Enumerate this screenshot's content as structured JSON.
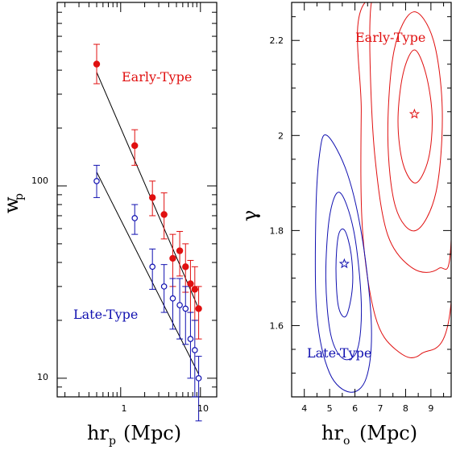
{
  "chart_data": [
    {
      "type": "scatter",
      "x_scale": "log",
      "y_scale": "log",
      "xlim": [
        0.16,
        16
      ],
      "ylim": [
        8,
        900
      ],
      "x_ticks": [
        1,
        10
      ],
      "y_ticks": [
        10,
        100
      ],
      "xlabel": "hr",
      "xlabel_subscript": "p",
      "xlabel_suffix": "(Mpc)",
      "ylabel": "w",
      "ylabel_subscript": "p",
      "grid": false,
      "series": [
        {
          "name": "Early-Type",
          "color": "#e01010",
          "marker": "filled-circle",
          "points": [
            {
              "x": 0.5,
              "y": 430,
              "lo": 340,
              "hi": 545
            },
            {
              "x": 1.5,
              "y": 162,
              "lo": 128,
              "hi": 196
            },
            {
              "x": 2.5,
              "y": 87,
              "lo": 70,
              "hi": 106
            },
            {
              "x": 3.5,
              "y": 71,
              "lo": 53,
              "hi": 92
            },
            {
              "x": 4.5,
              "y": 42,
              "lo": 30,
              "hi": 56
            },
            {
              "x": 5.5,
              "y": 46,
              "lo": 34,
              "hi": 58
            },
            {
              "x": 6.5,
              "y": 38,
              "lo": 28,
              "hi": 50
            },
            {
              "x": 7.5,
              "y": 31,
              "lo": 22,
              "hi": 41
            },
            {
              "x": 8.5,
              "y": 29,
              "lo": 20,
              "hi": 38
            },
            {
              "x": 9.5,
              "y": 23,
              "lo": 16,
              "hi": 30
            }
          ],
          "fit_line": [
            {
              "x": 0.5,
              "y": 390
            },
            {
              "x": 9.5,
              "y": 23
            }
          ]
        },
        {
          "name": "Late-Type",
          "color": "#1010b0",
          "marker": "open-circle",
          "points": [
            {
              "x": 0.5,
              "y": 106,
              "lo": 87,
              "hi": 128
            },
            {
              "x": 1.5,
              "y": 68,
              "lo": 56,
              "hi": 80
            },
            {
              "x": 2.5,
              "y": 38,
              "lo": 29,
              "hi": 47
            },
            {
              "x": 3.5,
              "y": 30,
              "lo": 22,
              "hi": 39
            },
            {
              "x": 4.5,
              "y": 26,
              "lo": 18,
              "hi": 33
            },
            {
              "x": 5.5,
              "y": 24,
              "lo": 16,
              "hi": 33
            },
            {
              "x": 6.5,
              "y": 23,
              "lo": 15,
              "hi": 30
            },
            {
              "x": 7.5,
              "y": 16,
              "lo": 10,
              "hi": 22
            },
            {
              "x": 8.5,
              "y": 14,
              "lo": 8,
              "hi": 20
            },
            {
              "x": 9.5,
              "y": 10,
              "lo": 6,
              "hi": 13
            }
          ],
          "fit_line": [
            {
              "x": 0.5,
              "y": 118
            },
            {
              "x": 9.5,
              "y": 10.5
            }
          ]
        }
      ]
    },
    {
      "type": "contour",
      "xlim": [
        3.5,
        9.8
      ],
      "ylim": [
        1.45,
        2.28
      ],
      "x_ticks": [
        4,
        5,
        6,
        7,
        8,
        9
      ],
      "y_ticks": [
        1.6,
        1.8,
        2,
        2.2
      ],
      "xlabel": "hr",
      "xlabel_subscript": "o",
      "xlabel_suffix": "(Mpc)",
      "ylabel": "γ",
      "grid": false,
      "series": [
        {
          "name": "Early-Type",
          "color": "#e01010",
          "best_fit": {
            "x": 8.35,
            "y": 2.045
          },
          "contours": [
            [
              [
                8.35,
                2.18
              ],
              [
                8.8,
                2.13
              ],
              [
                9.05,
                2.04
              ],
              [
                8.9,
                1.95
              ],
              [
                8.4,
                1.9
              ],
              [
                7.9,
                1.94
              ],
              [
                7.7,
                2.03
              ],
              [
                7.9,
                2.13
              ]
            ],
            [
              [
                8.3,
                2.26
              ],
              [
                9.1,
                2.2
              ],
              [
                9.45,
                2.05
              ],
              [
                9.2,
                1.88
              ],
              [
                8.4,
                1.8
              ],
              [
                7.6,
                1.85
              ],
              [
                7.3,
                2.0
              ],
              [
                7.55,
                2.18
              ]
            ],
            [
              [
                7.0,
                2.28
              ],
              [
                9.8,
                2.28
              ],
              [
                9.8,
                1.78
              ],
              [
                9.3,
                1.72
              ],
              [
                8.3,
                1.72
              ],
              [
                7.3,
                1.79
              ],
              [
                6.8,
                1.95
              ],
              [
                6.6,
                2.15
              ],
              [
                6.65,
                2.28
              ]
            ],
            [
              [
                6.4,
                2.28
              ],
              [
                9.8,
                2.28
              ],
              [
                9.8,
                1.65
              ],
              [
                8.6,
                1.54
              ],
              [
                7.6,
                1.55
              ],
              [
                6.8,
                1.62
              ],
              [
                6.3,
                1.8
              ],
              [
                6.25,
                2.05
              ]
            ]
          ]
        },
        {
          "name": "Late-Type",
          "color": "#1010b0",
          "best_fit": {
            "x": 5.58,
            "y": 1.73
          },
          "contours": [
            [
              [
                5.6,
                1.8
              ],
              [
                5.85,
                1.75
              ],
              [
                5.9,
                1.68
              ],
              [
                5.65,
                1.62
              ],
              [
                5.35,
                1.64
              ],
              [
                5.25,
                1.72
              ],
              [
                5.35,
                1.79
              ]
            ],
            [
              [
                5.4,
                1.88
              ],
              [
                5.95,
                1.8
              ],
              [
                6.25,
                1.65
              ],
              [
                6.1,
                1.55
              ],
              [
                5.55,
                1.53
              ],
              [
                5.05,
                1.58
              ],
              [
                4.85,
                1.7
              ],
              [
                5.0,
                1.83
              ]
            ],
            [
              [
                4.9,
                2.0
              ],
              [
                5.7,
                1.92
              ],
              [
                6.3,
                1.78
              ],
              [
                6.65,
                1.6
              ],
              [
                6.45,
                1.49
              ],
              [
                5.8,
                1.46
              ],
              [
                5.0,
                1.5
              ],
              [
                4.5,
                1.62
              ],
              [
                4.45,
                1.82
              ],
              [
                4.6,
                1.96
              ]
            ]
          ]
        }
      ]
    }
  ],
  "annotations": {
    "left_early": "Early-Type",
    "left_late": "Late-Type",
    "right_early": "Early-Type",
    "right_late": "Late-Type"
  }
}
